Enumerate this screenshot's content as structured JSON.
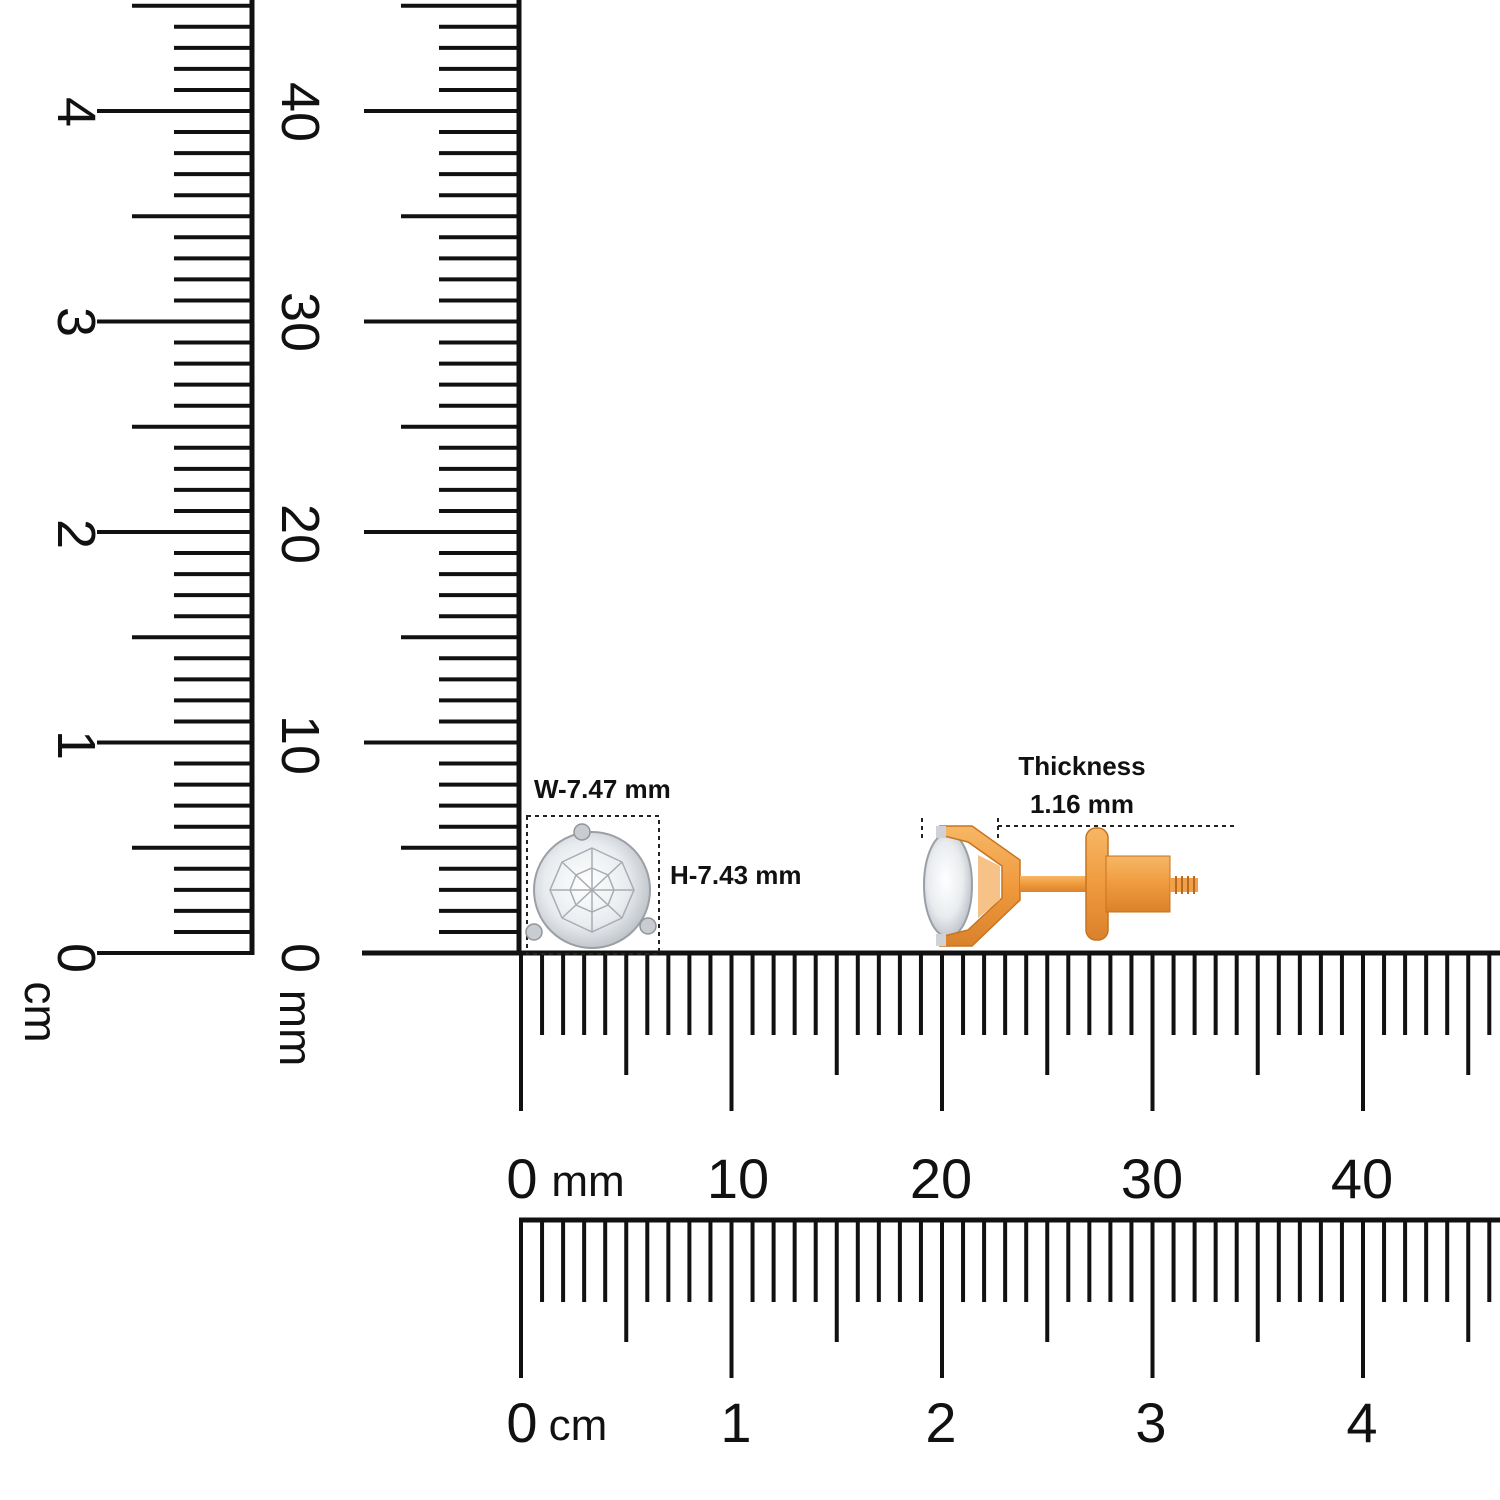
{
  "rulers": {
    "left_cm": {
      "unit": "cm",
      "zero": "0",
      "labels": [
        "1",
        "2",
        "3",
        "4"
      ]
    },
    "left_mm": {
      "unit": "mm",
      "zero": "0",
      "labels": [
        "10",
        "20",
        "30",
        "40"
      ]
    },
    "bottom_mm": {
      "unit": "mm",
      "zero": "0",
      "labels": [
        "10",
        "20",
        "30",
        "40"
      ]
    },
    "bottom_cm": {
      "unit": "cm",
      "zero": "0",
      "labels": [
        "1",
        "2",
        "3",
        "4"
      ]
    }
  },
  "dimensions": {
    "width": "W-7.47 mm",
    "height": "H-7.43 mm",
    "thickness_title": "Thickness",
    "thickness_value": "1.16 mm"
  },
  "colors": {
    "ink": "#111111",
    "gold": "#f0a04a",
    "platinum": "#d9d9d9",
    "diamond": "#f2f4f6"
  },
  "product": {
    "front_view_icon": "diamond-solitaire-icon",
    "side_view_icon": "stud-earring-side-icon"
  }
}
